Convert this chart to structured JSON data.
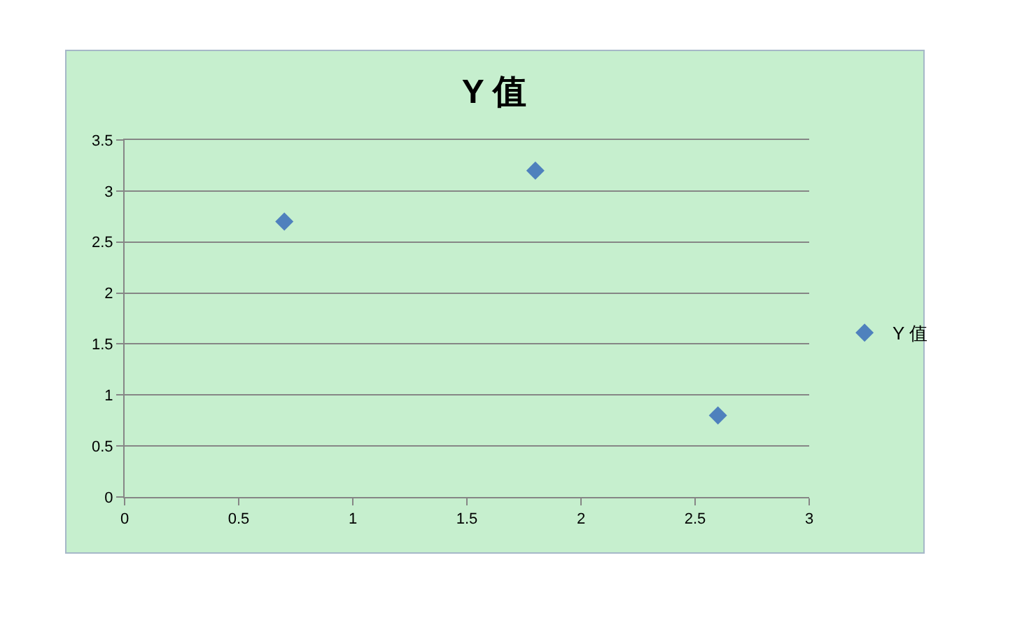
{
  "chart_data": {
    "type": "scatter",
    "title": "Y 值",
    "x": [
      0.7,
      1.8,
      2.6
    ],
    "series": [
      {
        "name": "Y 值",
        "color": "#4f81bd",
        "values": [
          2.7,
          3.2,
          0.8
        ]
      }
    ],
    "xlim": [
      0,
      3
    ],
    "xticks": [
      0,
      0.5,
      1,
      1.5,
      2,
      2.5,
      3
    ],
    "ylim": [
      0,
      3.5
    ],
    "yticks": [
      0,
      0.5,
      1,
      1.5,
      2,
      2.5,
      3,
      3.5
    ],
    "grid": "y",
    "legend": "right",
    "marker": "diamond"
  }
}
